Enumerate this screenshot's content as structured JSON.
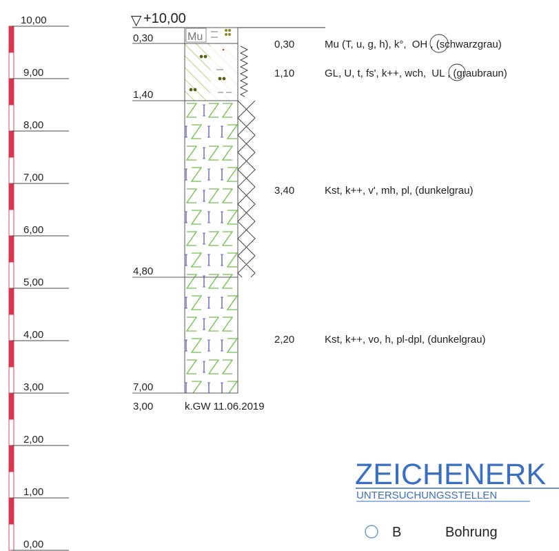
{
  "scale": {
    "labels": [
      "10,00",
      "9,00",
      "8,00",
      "7,00",
      "6,00",
      "5,00",
      "4,00",
      "3,00",
      "2,00",
      "1,00",
      "0,00"
    ],
    "color_filled": "#d8354f",
    "color_border": "#d8354f"
  },
  "borehole": {
    "top_level": "+10,00",
    "top_level_symbol": "▽",
    "boundaries_left": [
      "0,30",
      "1,40",
      "4,80",
      "7,00"
    ],
    "bottom_depth": "3,00",
    "groundwater_note": "k.GW 11.06.2019",
    "top_layer_code": "Mu"
  },
  "layers": [
    {
      "thickness": "0,30",
      "description_pre": "Mu (T, u, g, h), k°,",
      "group": "OH",
      "description_post": ", (schwarzgrau)"
    },
    {
      "thickness": "1,10",
      "description_pre": "GL, U, t, fs', k++, wch,",
      "group": "UL",
      "description_post": ", (graubraun)"
    },
    {
      "thickness": "3,40",
      "description_pre": "Kst, k++, v', mh, pl, (dunkelgrau)",
      "group": "",
      "description_post": ""
    },
    {
      "thickness": "2,20",
      "description_pre": "Kst, k++, vo, h, pl-dpl, (dunkelgrau)",
      "group": "",
      "description_post": ""
    }
  ],
  "legend": {
    "title": "ZEICHENERK",
    "subtitle": "UNTERSUCHUNGSSTELLEN",
    "symbol_letter": "B",
    "symbol_label": "Bohrung",
    "accent_color": "#3a6ec0"
  }
}
